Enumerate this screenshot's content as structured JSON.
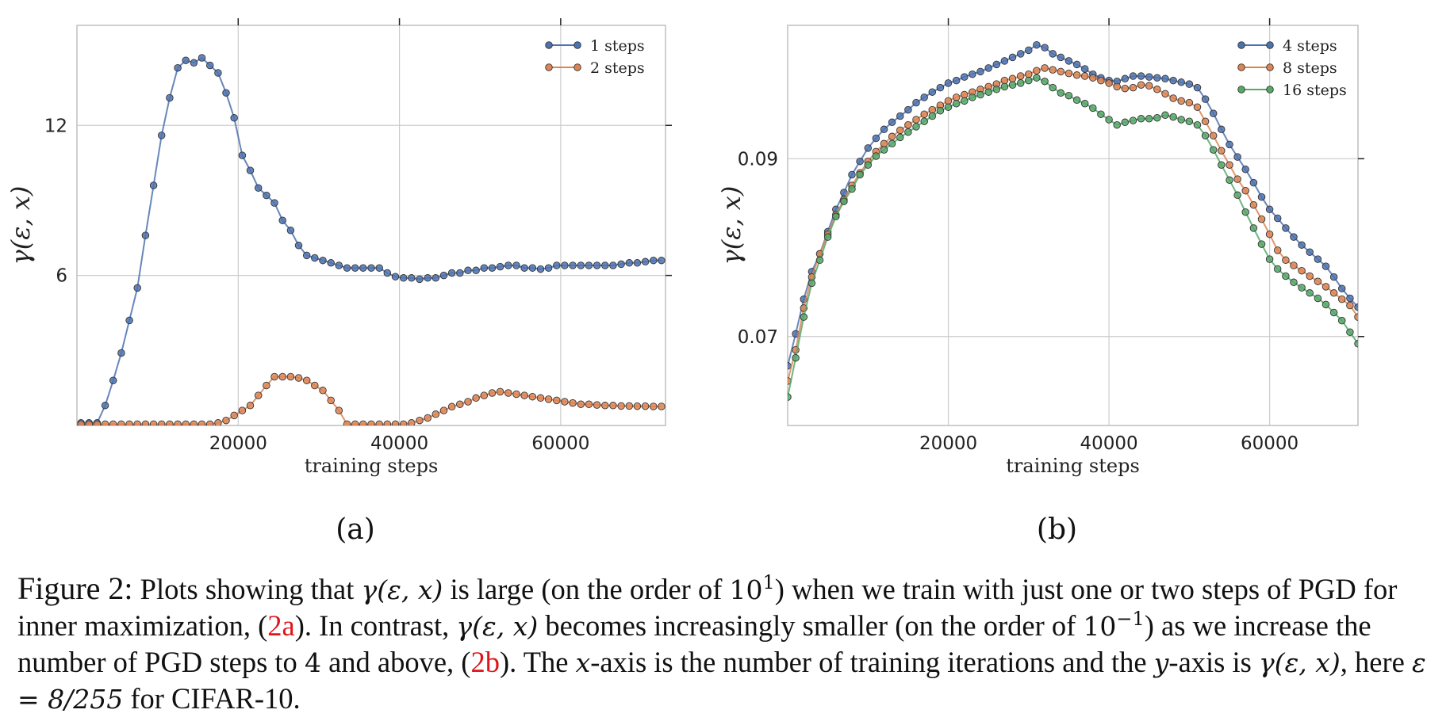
{
  "chart_data": [
    {
      "type": "line",
      "panel_label": "(a)",
      "xlabel": "training steps",
      "ylabel": "γ(ε, x)",
      "xlim": [
        0,
        73000
      ],
      "ylim": [
        0,
        16
      ],
      "xticks": [
        20000,
        40000,
        60000
      ],
      "yticks": [
        6,
        12
      ],
      "x_tick_labels": [
        "20000",
        "40000",
        "60000"
      ],
      "y_tick_labels": [
        "6",
        "12"
      ],
      "grid": true,
      "legend_position": "top-right",
      "series": [
        {
          "name": "1 steps",
          "color": "#4c72b0",
          "x": [
            500,
            1500,
            2500,
            3500,
            4500,
            5500,
            6500,
            7500,
            8500,
            9500,
            10500,
            11500,
            12500,
            13500,
            14500,
            15500,
            16500,
            17500,
            18500,
            19500,
            20500,
            21500,
            22500,
            23500,
            24500,
            25500,
            26500,
            27500,
            28500,
            29500,
            30500,
            31500,
            32500,
            33500,
            34500,
            35500,
            36500,
            37500,
            38500,
            39500,
            40500,
            41500,
            42500,
            43500,
            44500,
            45500,
            46500,
            47500,
            48500,
            49500,
            50500,
            51500,
            52500,
            53500,
            54500,
            55500,
            56500,
            57500,
            58500,
            59500,
            60500,
            61500,
            62500,
            63500,
            64500,
            65500,
            66500,
            67500,
            68500,
            69500,
            70500,
            71500,
            72500
          ],
          "y": [
            0.1,
            0.1,
            0.1,
            0.8,
            1.8,
            2.9,
            4.2,
            5.5,
            7.6,
            9.6,
            11.6,
            13.1,
            14.3,
            14.6,
            14.5,
            14.7,
            14.4,
            14.1,
            13.3,
            12.3,
            10.8,
            10.2,
            9.5,
            9.2,
            8.9,
            8.2,
            7.8,
            7.2,
            6.8,
            6.7,
            6.6,
            6.5,
            6.4,
            6.3,
            6.3,
            6.3,
            6.3,
            6.3,
            6.1,
            5.95,
            5.9,
            5.9,
            5.85,
            5.9,
            5.9,
            6.0,
            6.1,
            6.1,
            6.2,
            6.2,
            6.3,
            6.3,
            6.35,
            6.4,
            6.4,
            6.3,
            6.3,
            6.25,
            6.3,
            6.4,
            6.4,
            6.4,
            6.4,
            6.4,
            6.4,
            6.4,
            6.4,
            6.45,
            6.5,
            6.5,
            6.55,
            6.6,
            6.6
          ]
        },
        {
          "name": "2 steps",
          "color": "#dd8452",
          "x": [
            500,
            1500,
            2500,
            3500,
            4500,
            5500,
            6500,
            7500,
            8500,
            9500,
            10500,
            11500,
            12500,
            13500,
            14500,
            15500,
            16500,
            17500,
            18500,
            19500,
            20500,
            21500,
            22500,
            23500,
            24500,
            25500,
            26500,
            27500,
            28500,
            29500,
            30500,
            31500,
            32500,
            33500,
            34500,
            35500,
            36500,
            37500,
            38500,
            39500,
            40500,
            41500,
            42500,
            43500,
            44500,
            45500,
            46500,
            47500,
            48500,
            49500,
            50500,
            51500,
            52500,
            53500,
            54500,
            55500,
            56500,
            57500,
            58500,
            59500,
            60500,
            61500,
            62500,
            63500,
            64500,
            65500,
            66500,
            67500,
            68500,
            69500,
            70500,
            71500,
            72500
          ],
          "y": [
            0.05,
            0.05,
            0.05,
            0.05,
            0.05,
            0.05,
            0.05,
            0.05,
            0.05,
            0.05,
            0.05,
            0.05,
            0.05,
            0.05,
            0.05,
            0.05,
            0.05,
            0.1,
            0.2,
            0.4,
            0.6,
            0.8,
            1.2,
            1.6,
            1.95,
            1.95,
            1.95,
            1.9,
            1.8,
            1.6,
            1.4,
            1.0,
            0.6,
            0.05,
            0.05,
            0.05,
            0.05,
            0.05,
            0.05,
            0.05,
            0.05,
            0.1,
            0.2,
            0.3,
            0.45,
            0.6,
            0.75,
            0.85,
            0.95,
            1.1,
            1.2,
            1.3,
            1.35,
            1.3,
            1.25,
            1.2,
            1.15,
            1.1,
            1.05,
            1.0,
            0.95,
            0.9,
            0.85,
            0.85,
            0.82,
            0.8,
            0.8,
            0.78,
            0.78,
            0.77,
            0.77,
            0.76,
            0.76
          ]
        }
      ]
    },
    {
      "type": "line",
      "panel_label": "(b)",
      "xlabel": "training steps",
      "ylabel": "γ(ε, x)",
      "xlim": [
        0,
        71000
      ],
      "ylim": [
        0.06,
        0.105
      ],
      "xticks": [
        20000,
        40000,
        60000
      ],
      "yticks": [
        0.07,
        0.09
      ],
      "x_tick_labels": [
        "20000",
        "40000",
        "60000"
      ],
      "y_tick_labels": [
        "0.07",
        "0.09"
      ],
      "grid": true,
      "legend_position": "top-right",
      "series": [
        {
          "name": "4 steps",
          "color": "#4c72b0",
          "x": [
            0,
            1000,
            2000,
            3000,
            4000,
            5000,
            6000,
            7000,
            8000,
            9000,
            10000,
            11000,
            12000,
            13000,
            14000,
            15000,
            16000,
            17000,
            18000,
            19000,
            20000,
            21000,
            22000,
            23000,
            24000,
            25000,
            26000,
            27000,
            28000,
            29000,
            30000,
            31000,
            32000,
            33000,
            34000,
            35000,
            36000,
            37000,
            38000,
            39000,
            40000,
            41000,
            42000,
            43000,
            44000,
            45000,
            46000,
            47000,
            48000,
            49000,
            50000,
            51000,
            52000,
            53000,
            54000,
            55000,
            56000,
            57000,
            58000,
            59000,
            60000,
            61000,
            62000,
            63000,
            64000,
            65000,
            66000,
            67000,
            68000,
            69000,
            70000,
            71000
          ],
          "y": [
            0.0667,
            0.0703,
            0.0742,
            0.0773,
            0.0793,
            0.0818,
            0.0843,
            0.0862,
            0.0882,
            0.0897,
            0.0912,
            0.0923,
            0.0933,
            0.0941,
            0.0948,
            0.0955,
            0.0963,
            0.0969,
            0.0975,
            0.098,
            0.0985,
            0.0988,
            0.0992,
            0.0995,
            0.0998,
            0.1002,
            0.1006,
            0.101,
            0.1014,
            0.1018,
            0.1022,
            0.1028,
            0.1025,
            0.1018,
            0.1014,
            0.101,
            0.1006,
            0.1001,
            0.0995,
            0.0991,
            0.0988,
            0.0987,
            0.099,
            0.0993,
            0.0993,
            0.0992,
            0.0991,
            0.099,
            0.0988,
            0.0986,
            0.0984,
            0.098,
            0.0967,
            0.0951,
            0.0933,
            0.0916,
            0.0902,
            0.0888,
            0.0873,
            0.0857,
            0.0843,
            0.0833,
            0.0822,
            0.0812,
            0.0803,
            0.0795,
            0.0787,
            0.0779,
            0.0767,
            0.0754,
            0.0743,
            0.0733
          ]
        },
        {
          "name": "8 steps",
          "color": "#dd8452",
          "x": [
            0,
            1000,
            2000,
            3000,
            4000,
            5000,
            6000,
            7000,
            8000,
            9000,
            10000,
            11000,
            12000,
            13000,
            14000,
            15000,
            16000,
            17000,
            18000,
            19000,
            20000,
            21000,
            22000,
            23000,
            24000,
            25000,
            26000,
            27000,
            28000,
            29000,
            30000,
            31000,
            32000,
            33000,
            34000,
            35000,
            36000,
            37000,
            38000,
            39000,
            40000,
            41000,
            42000,
            43000,
            44000,
            45000,
            46000,
            47000,
            48000,
            49000,
            50000,
            51000,
            52000,
            53000,
            54000,
            55000,
            56000,
            57000,
            58000,
            59000,
            60000,
            61000,
            62000,
            63000,
            64000,
            65000,
            66000,
            67000,
            68000,
            69000,
            70000,
            71000
          ],
          "y": [
            0.065,
            0.0685,
            0.0732,
            0.0767,
            0.0793,
            0.0815,
            0.0837,
            0.0854,
            0.087,
            0.0884,
            0.0897,
            0.0908,
            0.0917,
            0.0925,
            0.0932,
            0.0938,
            0.0944,
            0.095,
            0.0955,
            0.096,
            0.0965,
            0.0969,
            0.0972,
            0.0975,
            0.0978,
            0.0981,
            0.0984,
            0.0988,
            0.099,
            0.0993,
            0.0995,
            0.0999,
            0.1002,
            0.1,
            0.0998,
            0.0996,
            0.0994,
            0.0993,
            0.0991,
            0.0988,
            0.0985,
            0.0981,
            0.0979,
            0.098,
            0.0983,
            0.0982,
            0.0978,
            0.0973,
            0.0968,
            0.0965,
            0.0963,
            0.0958,
            0.0942,
            0.0926,
            0.0909,
            0.0893,
            0.0877,
            0.0864,
            0.0848,
            0.0832,
            0.0815,
            0.0797,
            0.0786,
            0.078,
            0.0774,
            0.0768,
            0.0762,
            0.0756,
            0.0749,
            0.0742,
            0.0735,
            0.0722
          ]
        },
        {
          "name": "16 steps",
          "color": "#55a868",
          "x": [
            0,
            1000,
            2000,
            3000,
            4000,
            5000,
            6000,
            7000,
            8000,
            9000,
            10000,
            11000,
            12000,
            13000,
            14000,
            15000,
            16000,
            17000,
            18000,
            19000,
            20000,
            21000,
            22000,
            23000,
            24000,
            25000,
            26000,
            27000,
            28000,
            29000,
            30000,
            31000,
            32000,
            33000,
            34000,
            35000,
            36000,
            37000,
            38000,
            39000,
            40000,
            41000,
            42000,
            43000,
            44000,
            45000,
            46000,
            47000,
            48000,
            49000,
            50000,
            51000,
            52000,
            53000,
            54000,
            55000,
            56000,
            57000,
            58000,
            59000,
            60000,
            61000,
            62000,
            63000,
            64000,
            65000,
            66000,
            67000,
            68000,
            69000,
            70000,
            71000
          ],
          "y": [
            0.0632,
            0.0676,
            0.0722,
            0.076,
            0.0786,
            0.0812,
            0.0835,
            0.0852,
            0.0866,
            0.0882,
            0.0893,
            0.0903,
            0.091,
            0.0917,
            0.0924,
            0.093,
            0.0936,
            0.0942,
            0.0948,
            0.0954,
            0.0958,
            0.0962,
            0.0965,
            0.0969,
            0.0972,
            0.0975,
            0.0978,
            0.0981,
            0.0983,
            0.0985,
            0.0988,
            0.0991,
            0.0987,
            0.098,
            0.0974,
            0.0971,
            0.0966,
            0.0962,
            0.0957,
            0.095,
            0.0944,
            0.0938,
            0.0941,
            0.0943,
            0.0945,
            0.0945,
            0.0946,
            0.0949,
            0.0947,
            0.0944,
            0.0942,
            0.0938,
            0.0926,
            0.091,
            0.0893,
            0.0876,
            0.0859,
            0.084,
            0.0822,
            0.0804,
            0.0787,
            0.0776,
            0.0768,
            0.0761,
            0.0755,
            0.0749,
            0.0743,
            0.0736,
            0.0727,
            0.0718,
            0.0705,
            0.0692
          ]
        }
      ]
    }
  ],
  "caption": {
    "lead": "Figure 2:",
    "t1": " Plots showing that ",
    "gamma": "γ(ε, x)",
    "t2": " is large (on the order of ",
    "pow1_base": "10",
    "pow1_exp": "1",
    "t3": ") when we train with just one or two steps of PGD for inner maximization, (",
    "ref_a": "2a",
    "t4": "). In contrast, ",
    "t5": " becomes increasingly smaller (on the order of ",
    "pow2_base": "10",
    "pow2_exp": "−1",
    "t6": ") as we increase the number of PGD steps to ",
    "four": "4",
    "t7": " and above, (",
    "ref_b": "2b",
    "t8": "). The ",
    "xvar": "x",
    "t9": "-axis is the number of training iterations and the ",
    "yvar": "y",
    "t10": "-axis is ",
    "t11": ", here ",
    "eps_eq": "ε = 8/255",
    "t12": " for CIFAR-10."
  }
}
